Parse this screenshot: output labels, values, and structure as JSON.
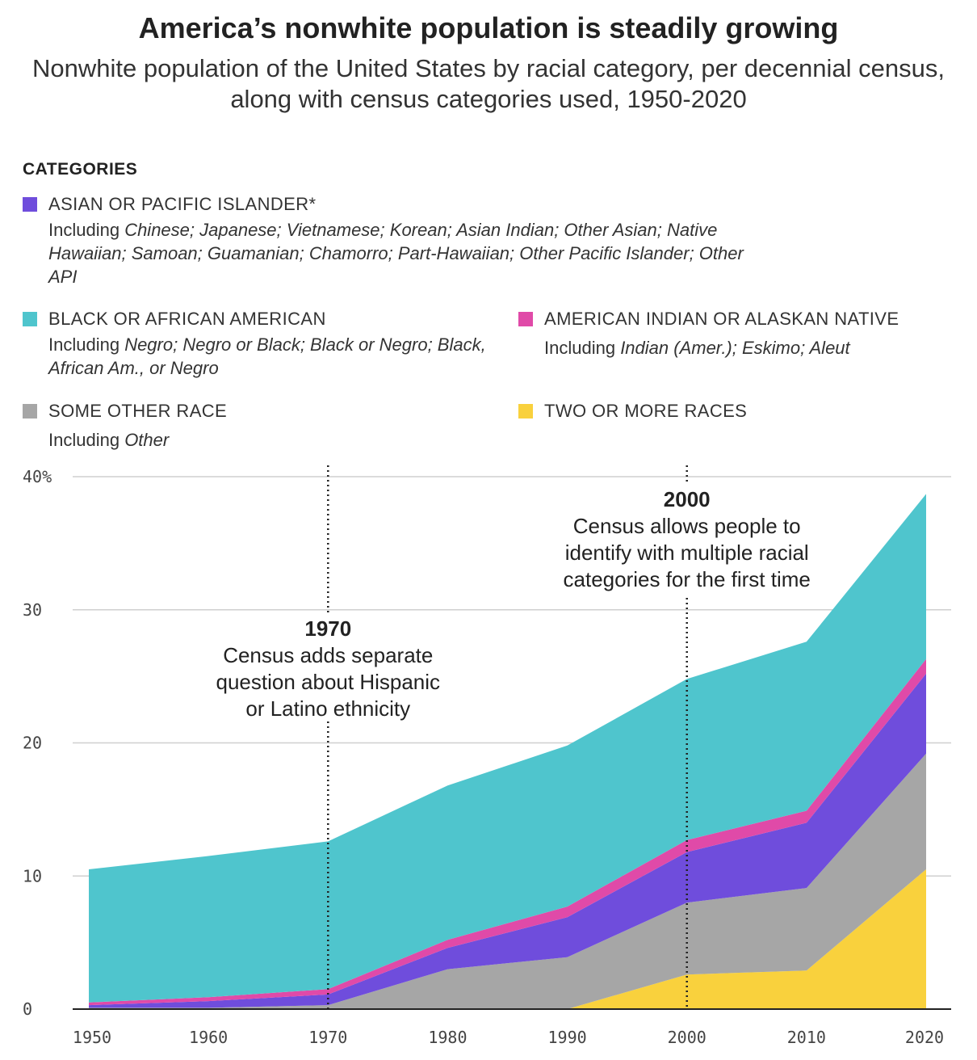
{
  "title": "America’s nonwhite population is steadily growing",
  "subtitle": "Nonwhite population of the United States by racial category, per decennial census, along with census categories used, 1950-2020",
  "legend": {
    "heading": "CATEGORIES",
    "items": [
      {
        "key": "asian",
        "label": "ASIAN OR PACIFIC ISLANDER*",
        "color": "#6f4ddc",
        "desc_prefix": "Including ",
        "desc_terms": "Chinese; Japanese; Vietnamese; Korean; Asian Indian; Other Asian; Native Hawaiian; Samoan; Guamanian; Chamorro; Part-Hawaiian; Other Pacific Islander; Other API"
      },
      {
        "key": "black",
        "label": "BLACK OR AFRICAN AMERICAN",
        "color": "#4fc5cd",
        "desc_prefix": "Including ",
        "desc_terms": "Negro; Negro or Black; Black or Negro; Black, African Am., or Negro"
      },
      {
        "key": "aian",
        "label": "AMERICAN INDIAN OR ALASKAN NATIVE",
        "color": "#e04aa8",
        "desc_prefix": "Including ",
        "desc_terms": "Indian (Amer.); Eskimo; Aleut"
      },
      {
        "key": "other",
        "label": "SOME OTHER RACE",
        "color": "#a6a6a6",
        "desc_prefix": "Including ",
        "desc_terms": "Other"
      },
      {
        "key": "two",
        "label": "TWO OR MORE RACES",
        "color": "#f9d13d",
        "desc_prefix": "",
        "desc_terms": ""
      }
    ]
  },
  "chart_data": {
    "type": "area",
    "stacked": true,
    "x": [
      1950,
      1960,
      1970,
      1980,
      1990,
      2000,
      2010,
      2020
    ],
    "xticks": [
      "1950",
      "1960",
      "1970",
      "1980",
      "1990",
      "2000",
      "2010",
      "2020"
    ],
    "ylim": [
      0,
      40
    ],
    "yticks": [
      0,
      10,
      20,
      30,
      40
    ],
    "ytick_labels": [
      "0",
      "10",
      "20",
      "30",
      "40%"
    ],
    "grid": true,
    "series": [
      {
        "name": "TWO OR MORE RACES",
        "key": "two",
        "color": "#f9d13d",
        "values": [
          0,
          0,
          0,
          0,
          0,
          2.6,
          2.9,
          10.5
        ]
      },
      {
        "name": "SOME OTHER RACE",
        "key": "other",
        "color": "#a6a6a6",
        "values": [
          0.1,
          0.1,
          0.3,
          3.0,
          3.9,
          5.4,
          6.2,
          8.7
        ]
      },
      {
        "name": "ASIAN OR PACIFIC ISLANDER*",
        "key": "asian",
        "color": "#6f4ddc",
        "values": [
          0.2,
          0.5,
          0.8,
          1.6,
          3.0,
          3.8,
          4.9,
          6.0
        ]
      },
      {
        "name": "AMERICAN INDIAN OR ALASKAN NATIVE",
        "key": "aian",
        "color": "#e04aa8",
        "values": [
          0.2,
          0.3,
          0.4,
          0.6,
          0.8,
          0.9,
          0.9,
          1.1
        ]
      },
      {
        "name": "BLACK OR AFRICAN AMERICAN",
        "key": "black",
        "color": "#4fc5cd",
        "values": [
          10.0,
          10.6,
          11.1,
          11.6,
          12.1,
          12.1,
          12.7,
          12.4
        ]
      }
    ],
    "annotations": [
      {
        "x": 1970,
        "year": "1970",
        "lines": [
          "Census adds separate",
          "question about Hispanic",
          "or Latino ethnicity"
        ]
      },
      {
        "x": 2000,
        "year": "2000",
        "lines": [
          "Census allows people to",
          "identify with multiple racial",
          "categories for the first time"
        ]
      }
    ]
  }
}
